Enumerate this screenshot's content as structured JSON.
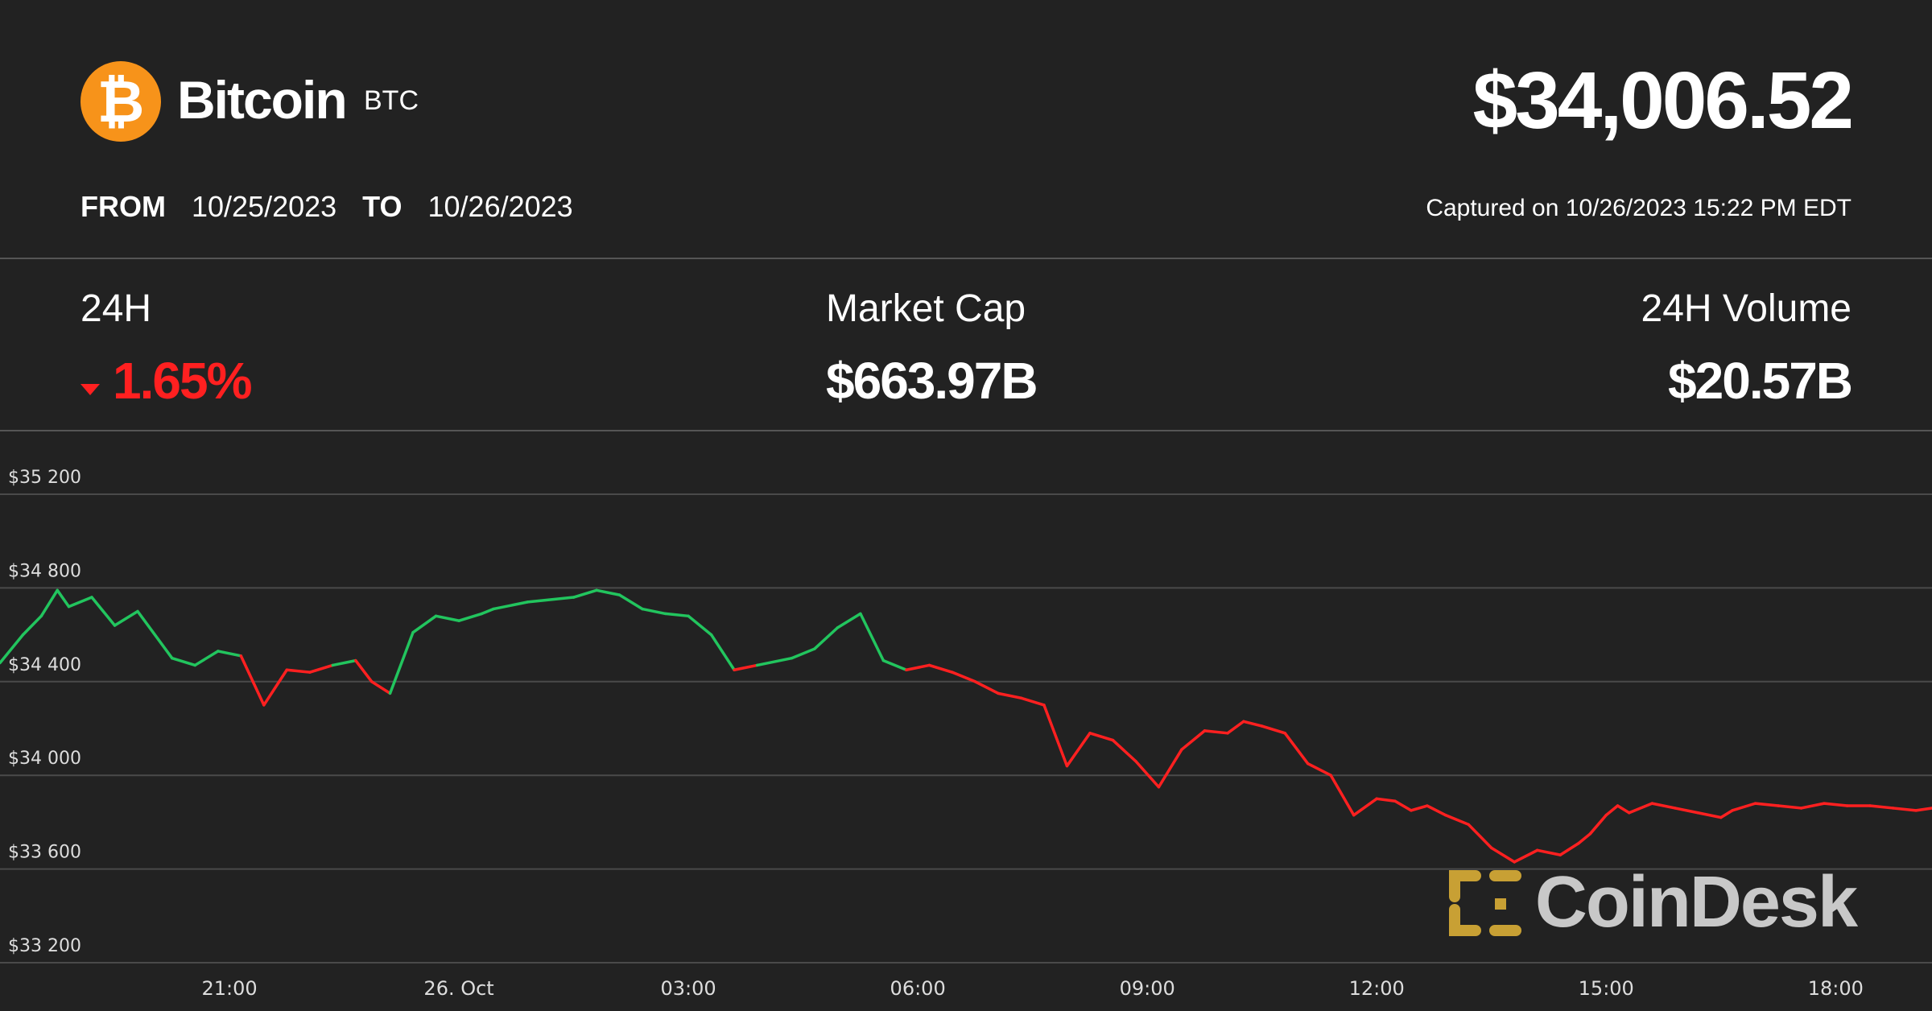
{
  "header": {
    "coin_name": "Bitcoin",
    "ticker": "BTC",
    "price": "$34,006.52",
    "from_label": "FROM",
    "from_date": "10/25/2023",
    "to_label": "TO",
    "to_date": "10/26/2023",
    "captured": "Captured on 10/26/2023 15:22 PM EDT"
  },
  "stats": {
    "change_label": "24H",
    "change_value": "1.65%",
    "market_cap_label": "Market Cap",
    "market_cap_value": "$663.97B",
    "volume_label": "24H Volume",
    "volume_value": "$20.57B"
  },
  "colors": {
    "background": "#222222",
    "up": "#22c55e",
    "down": "#ff2020",
    "bitcoin": "#f7931a",
    "logo_mark": "#c8a034"
  },
  "logo": {
    "text": "CoinDesk",
    "icon": "coindesk-mark-icon"
  },
  "chart_data": {
    "type": "line",
    "ylim": [
      33200,
      35200
    ],
    "yticks": [
      35200,
      34800,
      34400,
      34000,
      33600,
      33200
    ],
    "ytick_labels": [
      "$35 200",
      "$34 800",
      "$34 400",
      "$34 000",
      "$33 600",
      "$33 200"
    ],
    "xlim": [
      20.0,
      28.42
    ],
    "xticks": [
      21,
      22,
      23,
      24,
      25,
      26,
      27,
      28
    ],
    "xtick_labels": [
      "21:00",
      "26. Oct",
      "03:00",
      "06:00",
      "09:00",
      "12:00",
      "15:00",
      "18:00"
    ],
    "reference_price": 34470,
    "series": [
      {
        "x": [
          20.0,
          20.1,
          20.18,
          20.25,
          20.3,
          20.4,
          20.5,
          20.6,
          20.75,
          20.85,
          20.95,
          21.05,
          21.15,
          21.25,
          21.35,
          21.45,
          21.55,
          21.62,
          21.7,
          21.8,
          21.9,
          22.0,
          22.1,
          22.15,
          22.3,
          22.5,
          22.6,
          22.7,
          22.8,
          22.9,
          23.0,
          23.1,
          23.2,
          23.3,
          23.45,
          23.55,
          23.65,
          23.75,
          23.85,
          23.95,
          24.05,
          24.15,
          24.25,
          24.35,
          24.45,
          24.55,
          24.65,
          24.75,
          24.85,
          24.95,
          25.05,
          25.15,
          25.25,
          25.35,
          25.42,
          25.5,
          25.6,
          25.7,
          25.8,
          25.9,
          26.0,
          26.08,
          26.15,
          26.22,
          26.3,
          26.4,
          26.5,
          26.6,
          26.7,
          26.8,
          26.88,
          26.93,
          27.0,
          27.05,
          27.1,
          27.2,
          27.3,
          27.4,
          27.5,
          27.55,
          27.65,
          27.75,
          27.85,
          27.95,
          28.05,
          28.15,
          28.25,
          28.35,
          28.42
        ],
        "y": [
          34480,
          34600,
          34680,
          34790,
          34720,
          34760,
          34640,
          34700,
          34500,
          34470,
          34530,
          34510,
          34300,
          34450,
          34440,
          34470,
          34490,
          34400,
          34350,
          34610,
          34680,
          34660,
          34690,
          34710,
          34740,
          34760,
          34790,
          34770,
          34710,
          34690,
          34680,
          34600,
          34450,
          34470,
          34500,
          34540,
          34630,
          34690,
          34490,
          34450,
          34470,
          34440,
          34400,
          34350,
          34330,
          34300,
          34040,
          34180,
          34150,
          34060,
          33950,
          34110,
          34190,
          34180,
          34230,
          34210,
          34180,
          34050,
          34000,
          33830,
          33900,
          33890,
          33850,
          33870,
          33830,
          33790,
          33690,
          33630,
          33680,
          33660,
          33710,
          33750,
          33830,
          33870,
          33840,
          33880,
          33860,
          33840,
          33820,
          33850,
          33880,
          33870,
          33860,
          33880,
          33870,
          33870,
          33860,
          33850,
          33860
        ]
      }
    ]
  }
}
